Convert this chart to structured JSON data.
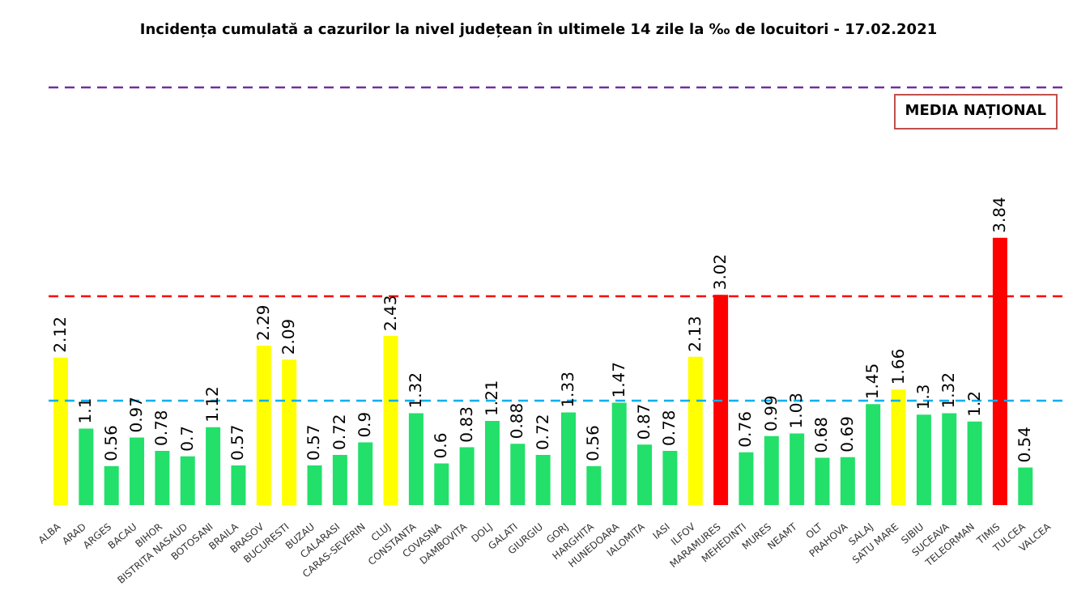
{
  "chart_data": {
    "type": "bar",
    "title": "Incidența cumulată a cazurilor la nivel județean în ultimele 14 zile la ‰ de locuitori - 17.02.2021",
    "categories": [
      "ALBA",
      "ARAD",
      "ARGES",
      "BACAU",
      "BIHOR",
      "BISTRITA NASAUD",
      "BOTOSANI",
      "BRAILA",
      "BRASOV",
      "BUCURESTI",
      "BUZAU",
      "CALARASI",
      "CARAS-SEVERIN",
      "CLUJ",
      "CONSTANTA",
      "COVASNA",
      "DAMBOVITA",
      "DOLJ",
      "GALATI",
      "GIURGIU",
      "GORJ",
      "HARGHITA",
      "HUNEDOARA",
      "IALOMITA",
      "IASI",
      "ILFOV",
      "MARAMURES",
      "MEHEDINTI",
      "MURES",
      "NEAMT",
      "OLT",
      "PRAHOVA",
      "SALAJ",
      "SATU MARE",
      "SIBIU",
      "SUCEAVA",
      "TELEORMAN",
      "TIMIS",
      "TULCEA",
      "VALCEA"
    ],
    "values": [
      2.12,
      1.1,
      0.56,
      0.97,
      0.78,
      0.7,
      1.12,
      0.57,
      2.29,
      2.09,
      0.57,
      0.72,
      0.9,
      2.43,
      1.32,
      0.6,
      0.83,
      1.21,
      0.88,
      0.72,
      1.33,
      0.56,
      1.47,
      0.87,
      0.78,
      2.13,
      3.02,
      0.76,
      0.99,
      1.03,
      0.68,
      0.69,
      1.45,
      1.66,
      1.3,
      1.32,
      1.2,
      3.84,
      0.54,
      null
    ],
    "colors": [
      "#ffff00",
      "#22e06a",
      "#22e06a",
      "#22e06a",
      "#22e06a",
      "#22e06a",
      "#22e06a",
      "#22e06a",
      "#ffff00",
      "#ffff00",
      "#22e06a",
      "#22e06a",
      "#22e06a",
      "#ffff00",
      "#22e06a",
      "#22e06a",
      "#22e06a",
      "#22e06a",
      "#22e06a",
      "#22e06a",
      "#22e06a",
      "#22e06a",
      "#22e06a",
      "#22e06a",
      "#22e06a",
      "#ffff00",
      "#ff0000",
      "#22e06a",
      "#22e06a",
      "#22e06a",
      "#22e06a",
      "#22e06a",
      "#22e06a",
      "#ffff00",
      "#22e06a",
      "#22e06a",
      "#22e06a",
      "#ff0000",
      "#22e06a",
      "#22e06a"
    ],
    "ref_lines": [
      {
        "axis": "y",
        "value": 6,
        "color": "#7030a0",
        "line_style": "dashed"
      },
      {
        "axis": "y",
        "value": 3,
        "color": "#ff0000",
        "line_style": "dashed"
      },
      {
        "axis": "y",
        "value": 1.5,
        "color": "#00b0f0",
        "line_style": "dashed"
      }
    ],
    "annotations": [
      "MEDIA NAȚIONAL"
    ],
    "data_labels": true,
    "tick_labels": "x",
    "grid": false
  }
}
